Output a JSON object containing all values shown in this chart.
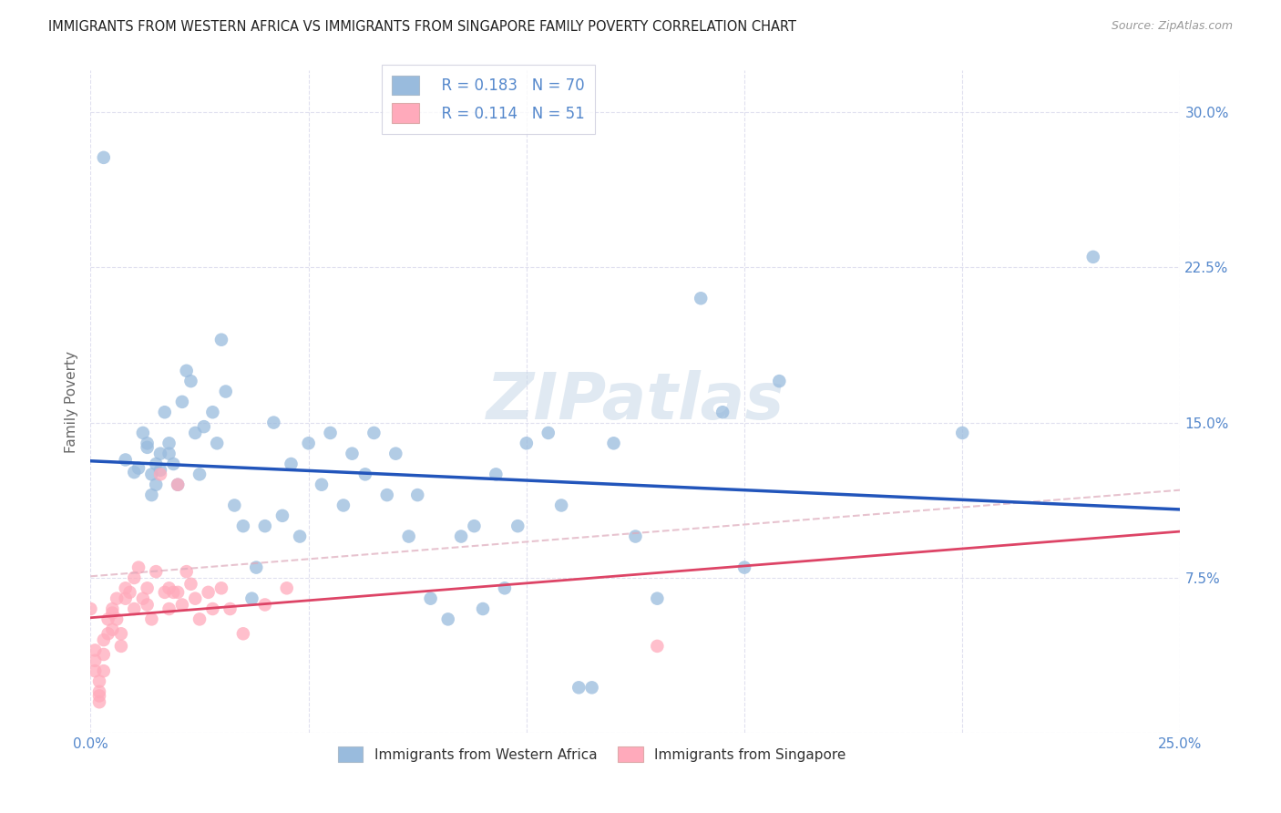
{
  "title": "IMMIGRANTS FROM WESTERN AFRICA VS IMMIGRANTS FROM SINGAPORE FAMILY POVERTY CORRELATION CHART",
  "source": "Source: ZipAtlas.com",
  "ylabel": "Family Poverty",
  "xlim": [
    0.0,
    0.25
  ],
  "ylim": [
    0.0,
    0.32
  ],
  "blue_color": "#99BBDD",
  "pink_color": "#FFAABB",
  "blue_line_color": "#2255BB",
  "pink_line_color": "#DD4466",
  "pink_dash_color": "#DDAABB",
  "background_color": "#FFFFFF",
  "grid_color": "#DDDDEE",
  "title_color": "#222222",
  "tick_color": "#5588CC",
  "watermark": "ZIPatlas",
  "R_blue": 0.183,
  "N_blue": 70,
  "R_pink": 0.114,
  "N_pink": 51,
  "blue_scatter_x": [
    0.003,
    0.008,
    0.01,
    0.011,
    0.012,
    0.013,
    0.013,
    0.014,
    0.014,
    0.015,
    0.015,
    0.016,
    0.016,
    0.017,
    0.018,
    0.018,
    0.019,
    0.02,
    0.021,
    0.022,
    0.023,
    0.024,
    0.025,
    0.026,
    0.028,
    0.029,
    0.03,
    0.031,
    0.033,
    0.035,
    0.037,
    0.038,
    0.04,
    0.042,
    0.044,
    0.046,
    0.048,
    0.05,
    0.053,
    0.055,
    0.058,
    0.06,
    0.063,
    0.065,
    0.068,
    0.07,
    0.073,
    0.075,
    0.078,
    0.082,
    0.085,
    0.088,
    0.09,
    0.093,
    0.095,
    0.098,
    0.1,
    0.105,
    0.108,
    0.112,
    0.115,
    0.12,
    0.125,
    0.13,
    0.14,
    0.145,
    0.15,
    0.158,
    0.2,
    0.23
  ],
  "blue_scatter_y": [
    0.278,
    0.132,
    0.126,
    0.128,
    0.145,
    0.14,
    0.138,
    0.115,
    0.125,
    0.12,
    0.13,
    0.127,
    0.135,
    0.155,
    0.14,
    0.135,
    0.13,
    0.12,
    0.16,
    0.175,
    0.17,
    0.145,
    0.125,
    0.148,
    0.155,
    0.14,
    0.19,
    0.165,
    0.11,
    0.1,
    0.065,
    0.08,
    0.1,
    0.15,
    0.105,
    0.13,
    0.095,
    0.14,
    0.12,
    0.145,
    0.11,
    0.135,
    0.125,
    0.145,
    0.115,
    0.135,
    0.095,
    0.115,
    0.065,
    0.055,
    0.095,
    0.1,
    0.06,
    0.125,
    0.07,
    0.1,
    0.14,
    0.145,
    0.11,
    0.022,
    0.022,
    0.14,
    0.095,
    0.065,
    0.21,
    0.155,
    0.08,
    0.17,
    0.145,
    0.23
  ],
  "pink_scatter_x": [
    0.0,
    0.001,
    0.001,
    0.001,
    0.002,
    0.002,
    0.002,
    0.002,
    0.003,
    0.003,
    0.003,
    0.004,
    0.004,
    0.005,
    0.005,
    0.005,
    0.006,
    0.006,
    0.007,
    0.007,
    0.008,
    0.008,
    0.009,
    0.01,
    0.01,
    0.011,
    0.012,
    0.013,
    0.013,
    0.014,
    0.015,
    0.016,
    0.017,
    0.018,
    0.018,
    0.019,
    0.02,
    0.02,
    0.021,
    0.022,
    0.023,
    0.024,
    0.025,
    0.027,
    0.028,
    0.03,
    0.032,
    0.035,
    0.04,
    0.045,
    0.13
  ],
  "pink_scatter_y": [
    0.06,
    0.04,
    0.035,
    0.03,
    0.025,
    0.02,
    0.018,
    0.015,
    0.045,
    0.038,
    0.03,
    0.055,
    0.048,
    0.06,
    0.058,
    0.05,
    0.065,
    0.055,
    0.048,
    0.042,
    0.07,
    0.065,
    0.068,
    0.075,
    0.06,
    0.08,
    0.065,
    0.07,
    0.062,
    0.055,
    0.078,
    0.125,
    0.068,
    0.07,
    0.06,
    0.068,
    0.12,
    0.068,
    0.062,
    0.078,
    0.072,
    0.065,
    0.055,
    0.068,
    0.06,
    0.07,
    0.06,
    0.048,
    0.062,
    0.07,
    0.042
  ]
}
